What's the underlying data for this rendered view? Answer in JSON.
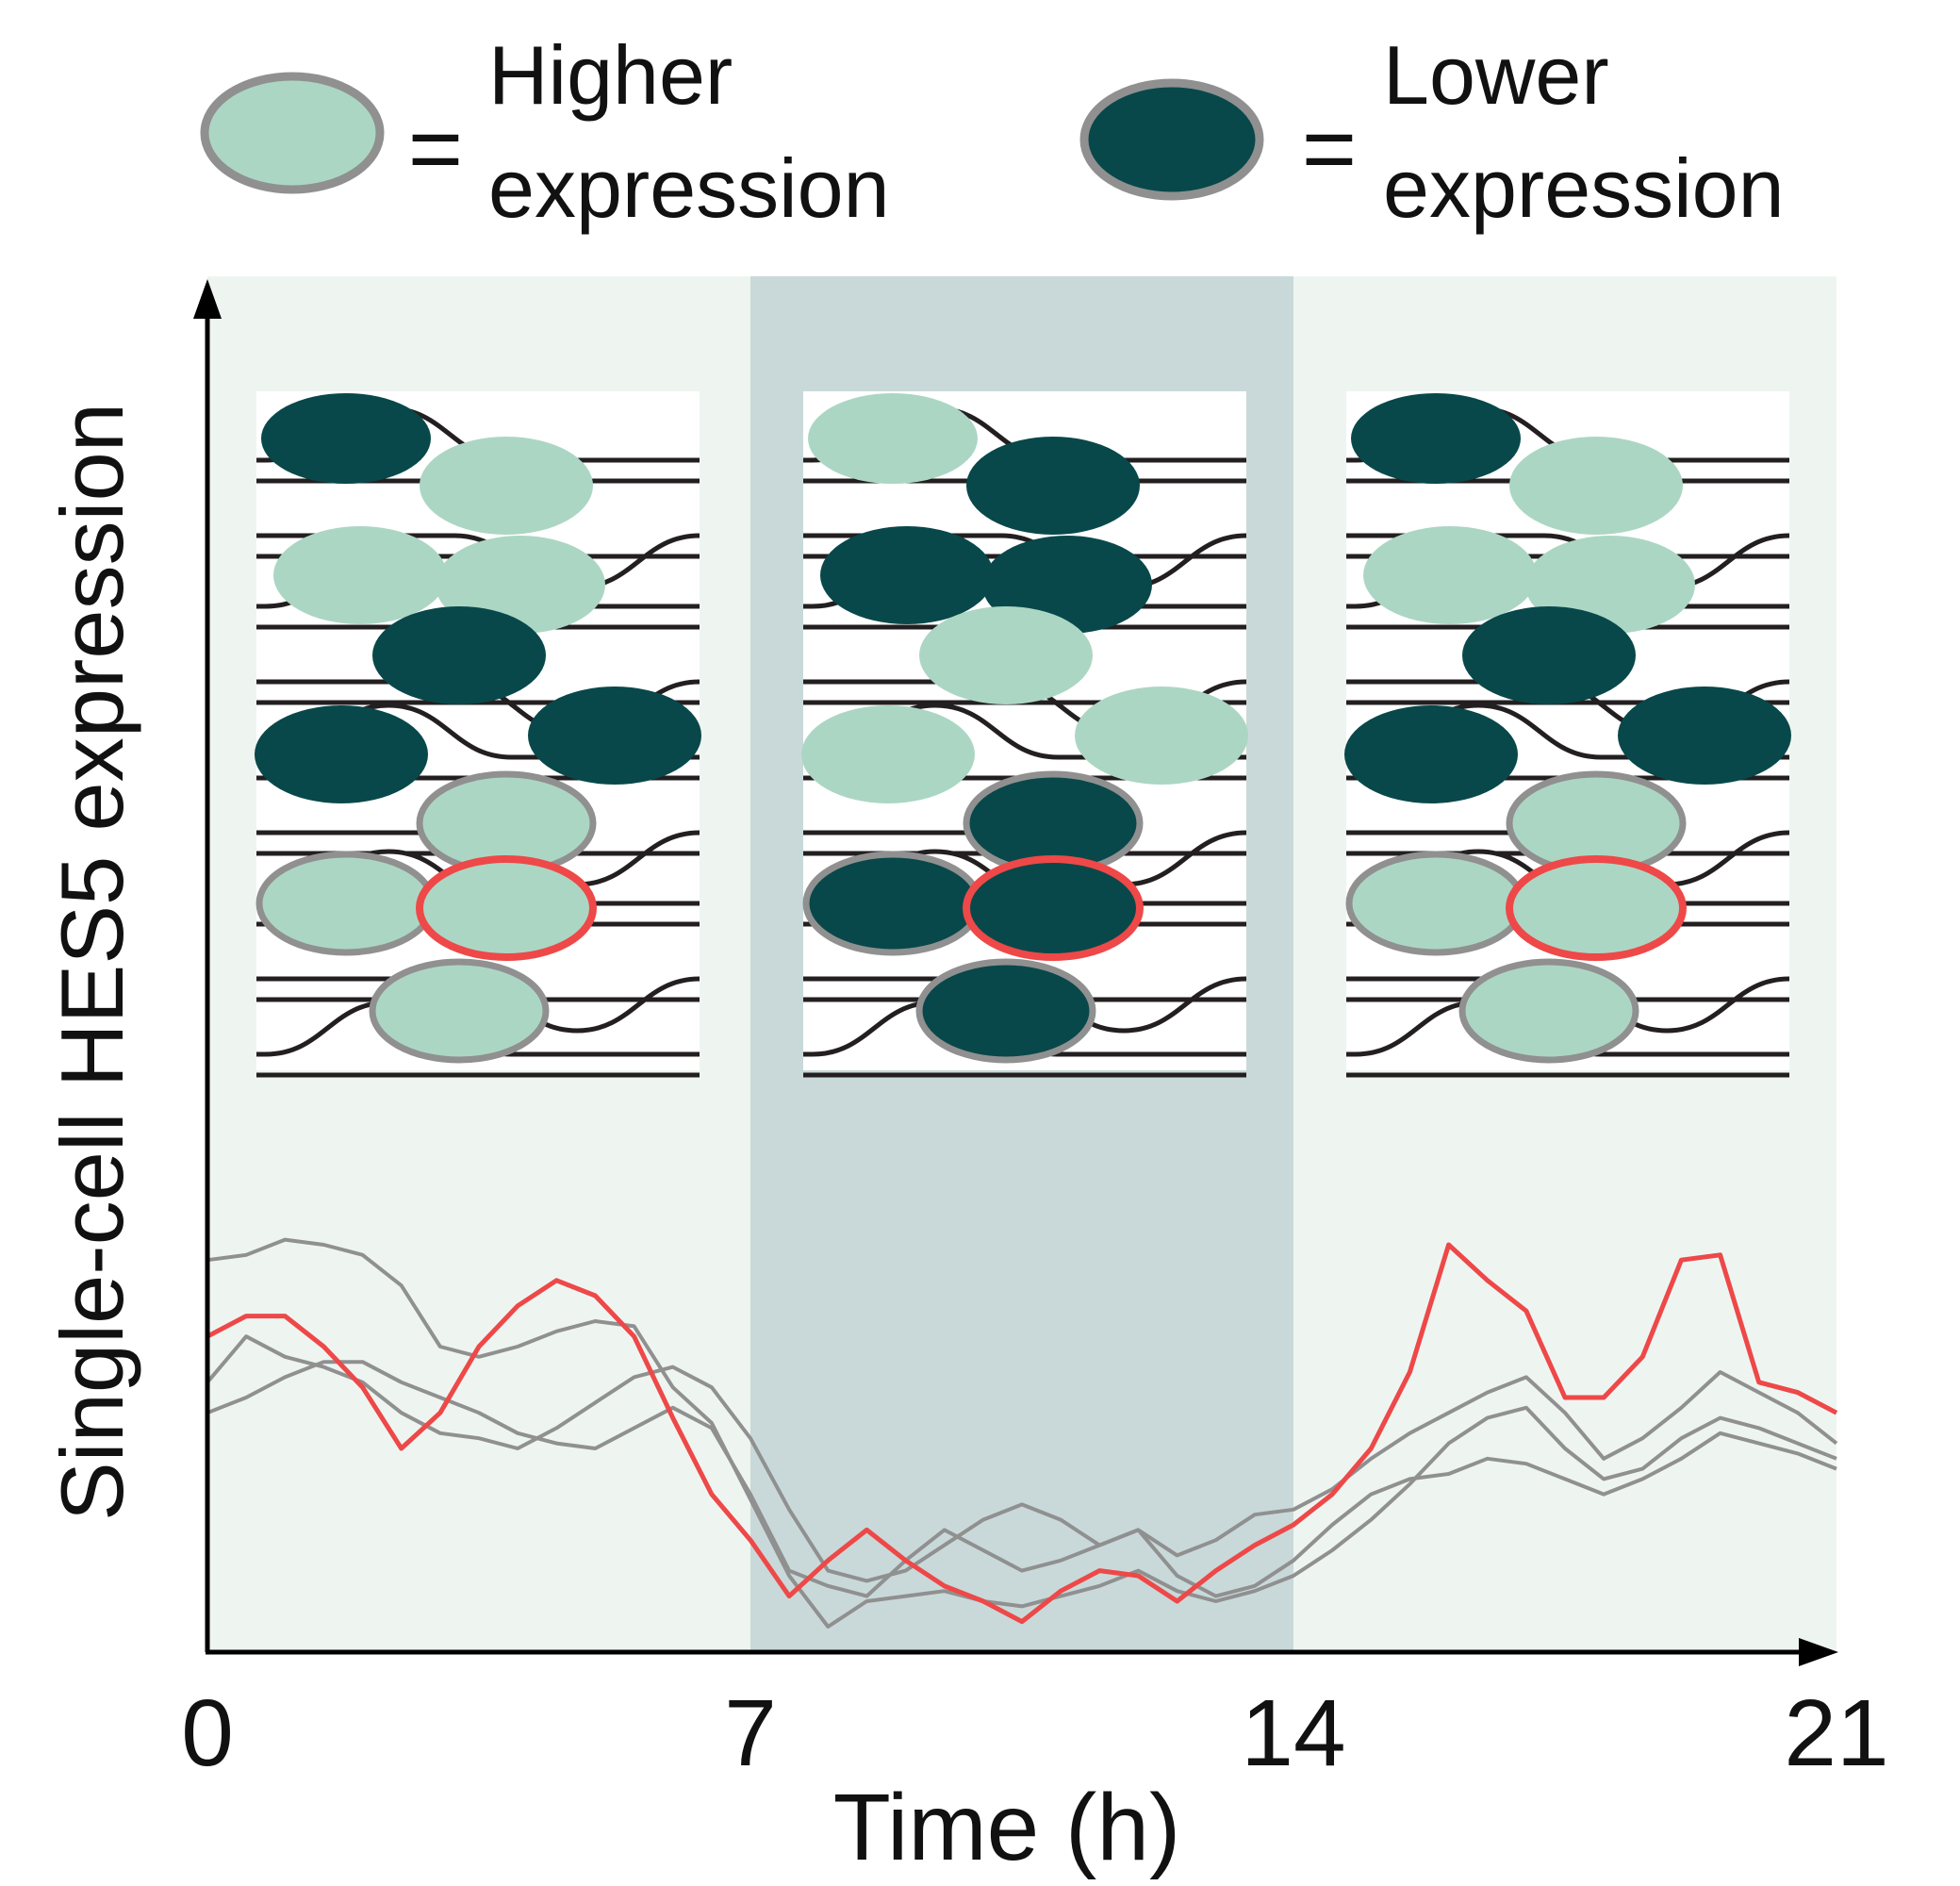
{
  "legend": {
    "items": [
      {
        "equals": "=",
        "line1": "Higher",
        "line2": "expression",
        "fill": "#acd6c4"
      },
      {
        "equals": "=",
        "line1": "Lower",
        "line2": "expression",
        "fill": "#08484a"
      }
    ]
  },
  "colors": {
    "high": "#acd6c4",
    "low": "#08484a",
    "neighbor_ring": "#909090",
    "focus_ring": "#ee4848",
    "band_light": "#eef5f1",
    "band_dark": "#c9d9d9",
    "axis": "#000000"
  },
  "axes": {
    "ylabel": "Single-cell HES5 expression",
    "xlabel": "Time (h)",
    "xticks": [
      "0",
      "7",
      "14",
      "21"
    ]
  },
  "panels": [
    {
      "time_h": 0,
      "nuclei": [
        "low",
        "high",
        "high",
        "high",
        "low",
        "low",
        "low",
        "high",
        "high",
        "high",
        "high"
      ],
      "focus_nucleus": 9
    },
    {
      "time_h": 7,
      "nuclei": [
        "high",
        "low",
        "low",
        "low",
        "high",
        "high",
        "high",
        "low",
        "low",
        "low",
        "low"
      ],
      "focus_nucleus": 9
    },
    {
      "time_h": 14,
      "nuclei": [
        "low",
        "high",
        "high",
        "high",
        "low",
        "low",
        "low",
        "high",
        "high",
        "high",
        "high"
      ],
      "focus_nucleus": 9
    }
  ],
  "chart_data": {
    "type": "line",
    "xlabel": "Time (h)",
    "ylabel": "Single-cell HES5 expression",
    "xlim": [
      0,
      21
    ],
    "ylim": [
      0,
      1
    ],
    "xticks": [
      0,
      7,
      14,
      21
    ],
    "background_bands": [
      {
        "x0": 0,
        "x1": 7,
        "shade": "light"
      },
      {
        "x0": 7,
        "x1": 14,
        "shade": "dark"
      },
      {
        "x0": 14,
        "x1": 21,
        "shade": "light"
      }
    ],
    "series": [
      {
        "color": "#ee4848",
        "highlight": true,
        "x": [
          0,
          0.5,
          1,
          1.5,
          2,
          2.5,
          3,
          3.5,
          4,
          4.5,
          5,
          5.5,
          6,
          6.5,
          7,
          7.5,
          8,
          8.5,
          9,
          9.5,
          10,
          10.5,
          11,
          11.5,
          12,
          12.5,
          13,
          13.5,
          14,
          14.5,
          15,
          15.5,
          16,
          16.5,
          17,
          17.5,
          18,
          18.5,
          19,
          19.5,
          20,
          20.5,
          21
        ],
        "y": [
          0.62,
          0.66,
          0.66,
          0.6,
          0.52,
          0.4,
          0.47,
          0.6,
          0.68,
          0.73,
          0.7,
          0.62,
          0.46,
          0.31,
          0.22,
          0.11,
          0.18,
          0.24,
          0.18,
          0.13,
          0.1,
          0.06,
          0.12,
          0.16,
          0.15,
          0.1,
          0.16,
          0.21,
          0.25,
          0.31,
          0.4,
          0.55,
          0.8,
          0.73,
          0.67,
          0.5,
          0.5,
          0.58,
          0.77,
          0.78,
          0.53,
          0.51,
          0.47
        ]
      },
      {
        "color": "#909090",
        "highlight": false,
        "x": [
          0,
          0.5,
          1,
          1.5,
          2,
          2.5,
          3,
          3.5,
          4,
          4.5,
          5,
          5.5,
          6,
          6.5,
          7,
          7.5,
          8,
          8.5,
          9,
          9.5,
          10,
          10.5,
          11,
          11.5,
          12,
          12.5,
          13,
          13.5,
          14,
          14.5,
          15,
          15.5,
          16,
          16.5,
          17,
          17.5,
          18,
          18.5,
          19,
          19.5,
          20,
          20.5,
          21
        ],
        "y": [
          0.77,
          0.78,
          0.81,
          0.8,
          0.78,
          0.72,
          0.6,
          0.58,
          0.6,
          0.63,
          0.65,
          0.64,
          0.52,
          0.45,
          0.3,
          0.15,
          0.05,
          0.1,
          0.11,
          0.12,
          0.1,
          0.09,
          0.11,
          0.13,
          0.16,
          0.12,
          0.1,
          0.12,
          0.15,
          0.2,
          0.26,
          0.33,
          0.41,
          0.46,
          0.48,
          0.4,
          0.34,
          0.36,
          0.42,
          0.46,
          0.44,
          0.41,
          0.38
        ]
      },
      {
        "color": "#909090",
        "highlight": false,
        "x": [
          0,
          0.5,
          1,
          1.5,
          2,
          2.5,
          3,
          3.5,
          4,
          4.5,
          5,
          5.5,
          6,
          6.5,
          7,
          7.5,
          8,
          8.5,
          9,
          9.5,
          10,
          10.5,
          11,
          11.5,
          12,
          12.5,
          13,
          13.5,
          14,
          14.5,
          15,
          15.5,
          16,
          16.5,
          17,
          17.5,
          18,
          18.5,
          19,
          19.5,
          20,
          20.5,
          21
        ],
        "y": [
          0.53,
          0.62,
          0.58,
          0.56,
          0.53,
          0.47,
          0.43,
          0.42,
          0.4,
          0.44,
          0.49,
          0.54,
          0.56,
          0.52,
          0.42,
          0.28,
          0.16,
          0.14,
          0.16,
          0.21,
          0.26,
          0.29,
          0.26,
          0.21,
          0.24,
          0.19,
          0.22,
          0.27,
          0.28,
          0.32,
          0.38,
          0.43,
          0.47,
          0.51,
          0.54,
          0.47,
          0.38,
          0.42,
          0.48,
          0.55,
          0.51,
          0.47,
          0.41
        ]
      },
      {
        "color": "#909090",
        "highlight": false,
        "x": [
          0,
          0.5,
          1,
          1.5,
          2,
          2.5,
          3,
          3.5,
          4,
          4.5,
          5,
          5.5,
          6,
          6.5,
          7,
          7.5,
          8,
          8.5,
          9,
          9.5,
          10,
          10.5,
          11,
          11.5,
          12,
          12.5,
          13,
          13.5,
          14,
          14.5,
          15,
          15.5,
          16,
          16.5,
          17,
          17.5,
          18,
          18.5,
          19,
          19.5,
          20,
          20.5,
          21
        ],
        "y": [
          0.47,
          0.5,
          0.54,
          0.57,
          0.57,
          0.53,
          0.5,
          0.47,
          0.43,
          0.41,
          0.4,
          0.44,
          0.48,
          0.44,
          0.31,
          0.16,
          0.13,
          0.11,
          0.18,
          0.24,
          0.2,
          0.16,
          0.18,
          0.21,
          0.24,
          0.15,
          0.11,
          0.13,
          0.18,
          0.25,
          0.31,
          0.34,
          0.35,
          0.38,
          0.37,
          0.34,
          0.31,
          0.34,
          0.38,
          0.43,
          0.41,
          0.39,
          0.36
        ]
      }
    ]
  }
}
